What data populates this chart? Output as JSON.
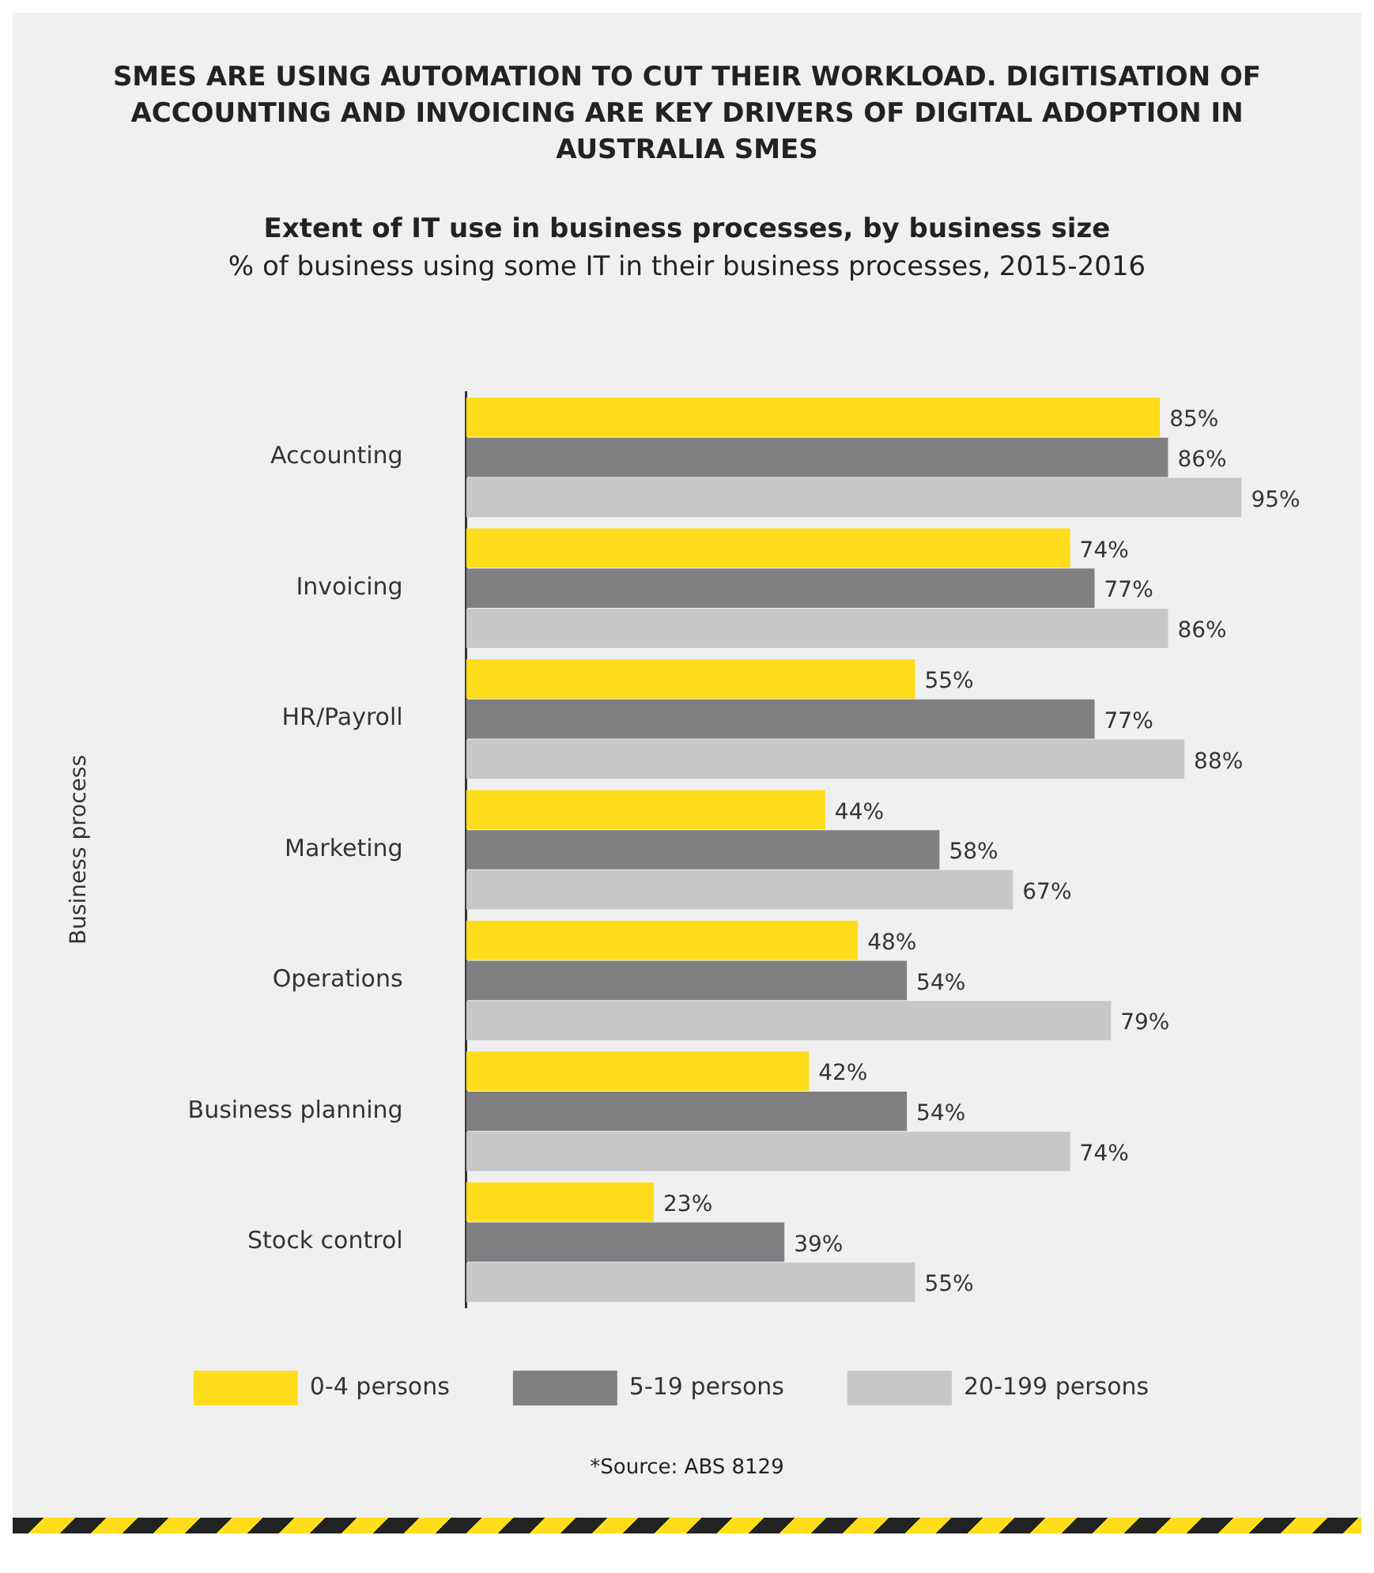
{
  "chart_data": {
    "type": "bar",
    "orientation": "horizontal",
    "title": "SMES ARE USING AUTOMATION TO CUT THEIR WORKLOAD. DIGITISATION OF ACCOUNTING AND INVOICING ARE KEY DRIVERS OF DIGITAL ADOPTION IN AUSTRALIA SMES",
    "subtitle": "Extent of IT use in business processes, by business size",
    "annotations": [
      "% of business using some IT in their business processes, 2015-2016",
      "*Source: ABS 8129"
    ],
    "ylabel": "Business process",
    "categories": [
      "Accounting",
      "Invoicing",
      "HR/Payroll",
      "Marketing",
      "Operations",
      "Business planning",
      "Stock control"
    ],
    "series": [
      {
        "name": "0-4 persons",
        "color": "#ffdd1a",
        "values": [
          85,
          74,
          55,
          44,
          48,
          42,
          23
        ],
        "value_labels": [
          "85%",
          "74%",
          "55%",
          "44%",
          "48%",
          "42%",
          "23%"
        ]
      },
      {
        "name": "5-19 persons",
        "color": "#808083",
        "values": [
          86,
          77,
          77,
          58,
          54,
          54,
          39
        ],
        "value_labels": [
          "86%",
          "77%",
          "77%",
          "58%",
          "54%",
          "54%",
          "39%"
        ]
      },
      {
        "name": "20-199 persons",
        "color": "#c6c7c9",
        "values": [
          95,
          86,
          88,
          67,
          79,
          74,
          55
        ],
        "value_labels": [
          "95%",
          "86%",
          "88%",
          "67%",
          "79%",
          "74%",
          "55%"
        ]
      }
    ],
    "tick_labels": "y",
    "grid": false,
    "legend": "bottom"
  }
}
